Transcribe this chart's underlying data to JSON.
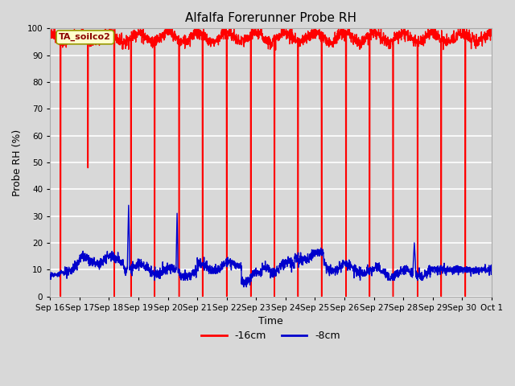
{
  "title": "Alfalfa Forerunner Probe RH",
  "xlabel": "Time",
  "ylabel": "Probe RH (%)",
  "ylim": [
    0,
    100
  ],
  "yticks": [
    0,
    10,
    20,
    30,
    40,
    50,
    60,
    70,
    80,
    90,
    100
  ],
  "plot_bg_color": "#d8d8d8",
  "grid_color": "#ffffff",
  "legend_label_red": "-16cm",
  "legend_label_blue": "-8cm",
  "legend_box_color": "#ffffcc",
  "legend_box_edge": "#999900",
  "annotation_label": "TA_soilco2",
  "red_color": "#ff0000",
  "blue_color": "#0000cc",
  "line_width": 1.0,
  "num_days": 15,
  "x_tick_labels": [
    "Sep 16",
    "Sep 17",
    "Sep 18",
    "Sep 19",
    "Sep 20",
    "Sep 21",
    "Sep 22",
    "Sep 23",
    "Sep 24",
    "Sep 25",
    "Sep 26",
    "Sep 27",
    "Sep 28",
    "Sep 29",
    "Sep 30",
    "Oct 1"
  ]
}
